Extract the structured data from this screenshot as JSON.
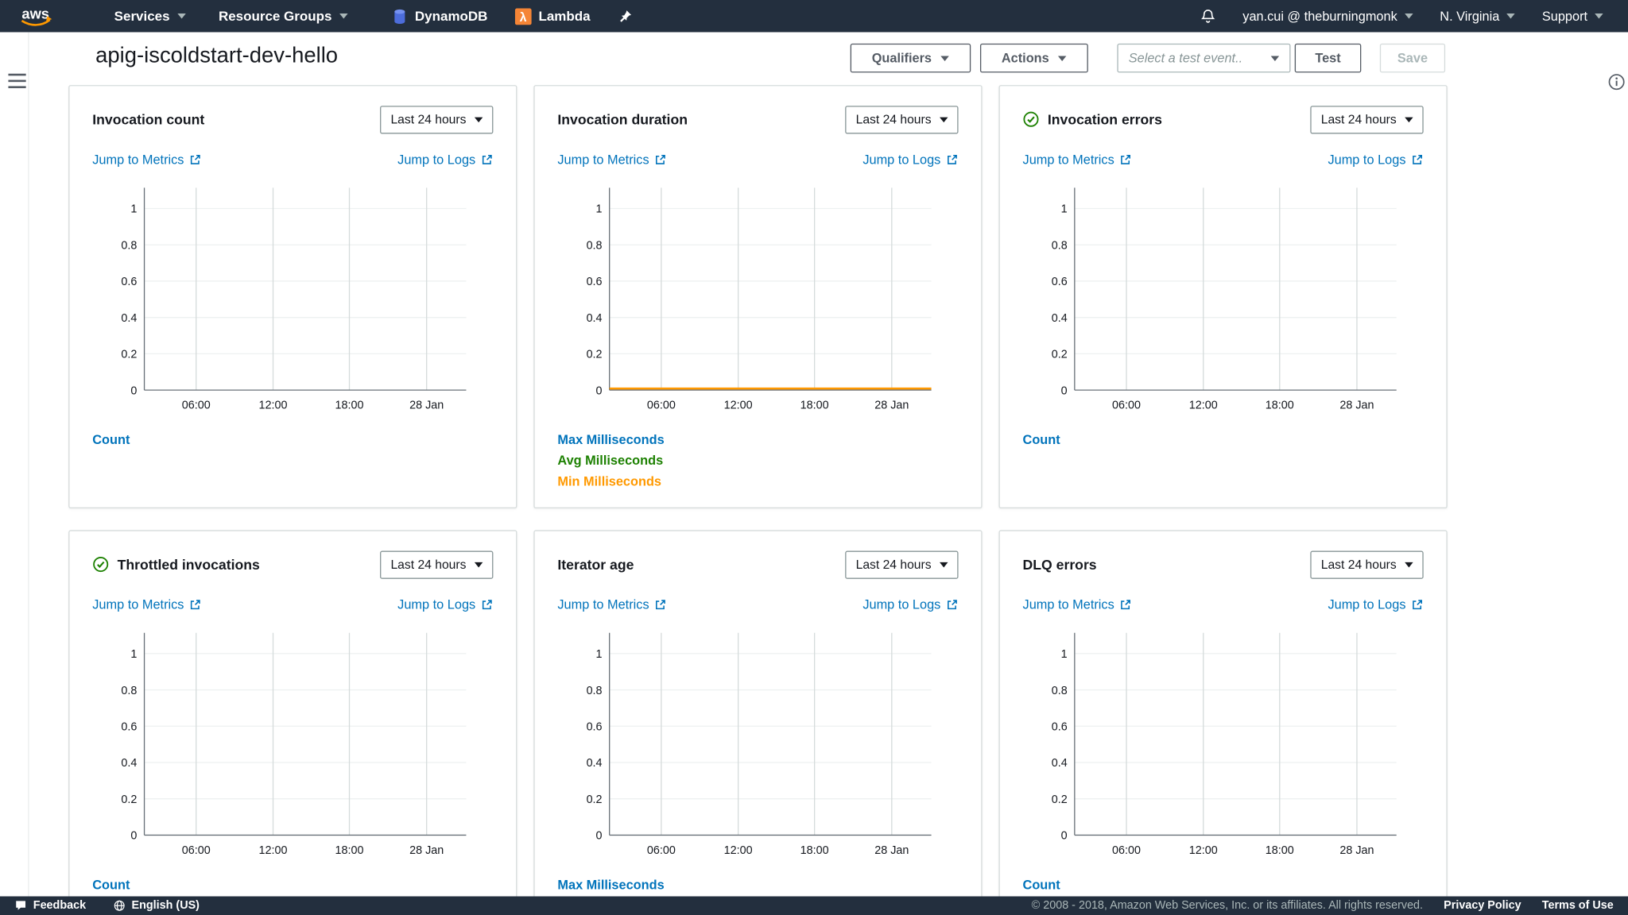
{
  "nav": {
    "logo": "aws",
    "services": "Services",
    "resource_groups": "Resource Groups",
    "dynamodb": "DynamoDB",
    "lambda": "Lambda",
    "user": "yan.cui @ theburningmonk",
    "region": "N. Virginia",
    "support": "Support"
  },
  "header": {
    "title": "apig-iscoldstart-dev-hello",
    "qualifiers": "Qualifiers",
    "actions": "Actions",
    "test_event_placeholder": "Select a test event..",
    "test": "Test",
    "save": "Save"
  },
  "chart_axes": {
    "y_ticks": [
      "1",
      "0.8",
      "0.6",
      "0.4",
      "0.2",
      "0"
    ],
    "x_ticks": [
      "06:00",
      "12:00",
      "18:00",
      "28 Jan"
    ]
  },
  "cards": [
    {
      "title": "Invocation count",
      "has_check": false,
      "range_label": "Last 24 hours",
      "metrics_link": "Jump to Metrics",
      "logs_link": "Jump to Logs",
      "legend": [
        {
          "label": "Count",
          "color": "#0073bb"
        }
      ],
      "chart": {
        "type": "line",
        "empty": true
      }
    },
    {
      "title": "Invocation duration",
      "has_check": false,
      "range_label": "Last 24 hours",
      "metrics_link": "Jump to Metrics",
      "logs_link": "Jump to Logs",
      "legend": [
        {
          "label": "Max Milliseconds",
          "color": "#0073bb"
        },
        {
          "label": "Avg Milliseconds",
          "color": "#1d8102"
        },
        {
          "label": "Min Milliseconds",
          "color": "#ff9900"
        }
      ],
      "chart": {
        "type": "line",
        "empty": false
      },
      "flat_line": {
        "series": "Min Milliseconds",
        "value": 0,
        "color": "#ff9900"
      }
    },
    {
      "title": "Invocation errors",
      "has_check": true,
      "range_label": "Last 24 hours",
      "metrics_link": "Jump to Metrics",
      "logs_link": "Jump to Logs",
      "legend": [
        {
          "label": "Count",
          "color": "#0073bb"
        }
      ],
      "chart": {
        "type": "line",
        "empty": true
      }
    },
    {
      "title": "Throttled invocations",
      "has_check": true,
      "range_label": "Last 24 hours",
      "metrics_link": "Jump to Metrics",
      "logs_link": "Jump to Logs",
      "legend": [
        {
          "label": "Count",
          "color": "#0073bb"
        }
      ],
      "chart": {
        "type": "line",
        "empty": true
      }
    },
    {
      "title": "Iterator age",
      "has_check": false,
      "range_label": "Last 24 hours",
      "metrics_link": "Jump to Metrics",
      "logs_link": "Jump to Logs",
      "legend": [
        {
          "label": "Max Milliseconds",
          "color": "#0073bb"
        }
      ],
      "chart": {
        "type": "line",
        "empty": true
      }
    },
    {
      "title": "DLQ errors",
      "has_check": false,
      "range_label": "Last 24 hours",
      "metrics_link": "Jump to Metrics",
      "logs_link": "Jump to Logs",
      "legend": [
        {
          "label": "Count",
          "color": "#0073bb"
        }
      ],
      "chart": {
        "type": "line",
        "empty": true
      }
    }
  ],
  "footer": {
    "feedback": "Feedback",
    "language": "English (US)",
    "copyright": "© 2008 - 2018, Amazon Web Services, Inc. or its affiliates. All rights reserved.",
    "privacy": "Privacy Policy",
    "terms": "Terms of Use"
  },
  "colors": {
    "nav_bg": "#232f3e",
    "link_blue": "#0073bb",
    "ok_green": "#1d8102",
    "warn_orange": "#ff9900"
  }
}
